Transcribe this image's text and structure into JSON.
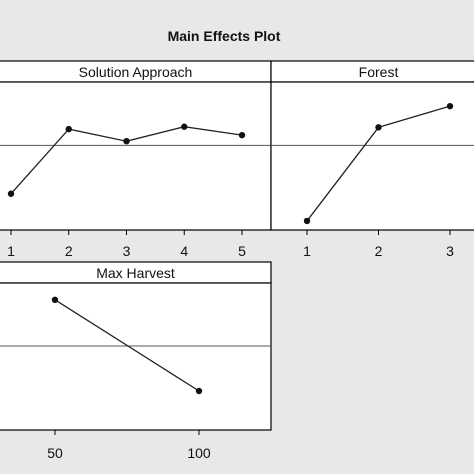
{
  "title": "Main Effects Plot",
  "colors": {
    "background": "#e8e8e8",
    "panel": "#ffffff",
    "line": "#222222",
    "mean_line": "#555555"
  },
  "chart_data": [
    {
      "type": "line",
      "title": "Solution Approach",
      "categories": [
        "1",
        "2",
        "3",
        "4",
        "5"
      ],
      "values": [
        -0.8,
        0.27,
        0.07,
        0.31,
        0.17
      ],
      "reference_line": 0,
      "ylim": [
        -1.4,
        1.05
      ]
    },
    {
      "type": "line",
      "title": "Forest",
      "categories": [
        "1",
        "2",
        "3"
      ],
      "values": [
        -1.25,
        0.3,
        0.65
      ],
      "reference_line": 0,
      "ylim": [
        -1.4,
        1.05
      ]
    },
    {
      "type": "line",
      "title": "Max Harvest",
      "categories": [
        "50",
        "100"
      ],
      "values": [
        0.77,
        -0.75
      ],
      "reference_line": 0,
      "ylim": [
        -1.4,
        1.05
      ]
    }
  ]
}
